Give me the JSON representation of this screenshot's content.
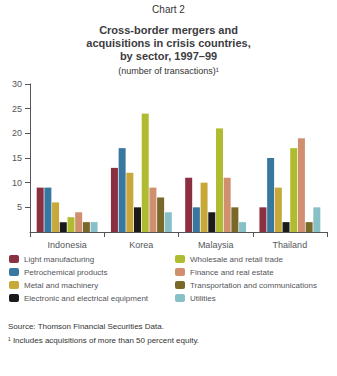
{
  "chart_data": {
    "type": "bar",
    "title": "Cross-border mergers and\nacquisitions in crisis countries,\nby sector, 1997–99",
    "subtitle": "(number of transactions)¹",
    "annotations": [
      "Chart 2",
      "Source: Thomson Financial Securities Data.",
      "¹ Includes acquisitions of more than 50 percent equity."
    ],
    "categories": [
      "Indonesia",
      "Korea",
      "Malaysia",
      "Thailand"
    ],
    "series": [
      {
        "name": "Light manufacturing",
        "color": "#8b3040",
        "values": [
          9,
          13,
          11,
          5
        ]
      },
      {
        "name": "Petrochemical products",
        "color": "#3878a0",
        "values": [
          9,
          17,
          5,
          15
        ]
      },
      {
        "name": "Metal and machinery",
        "color": "#c8a838",
        "values": [
          6,
          12,
          10,
          9
        ]
      },
      {
        "name": "Electronic and electrical equipment",
        "color": "#1a1a1a",
        "values": [
          2,
          5,
          4,
          2
        ]
      },
      {
        "name": "Wholesale and retail trade",
        "color": "#b0bc30",
        "values": [
          3,
          24,
          21,
          17
        ]
      },
      {
        "name": "Finance and real estate",
        "color": "#d09070",
        "values": [
          4,
          9,
          11,
          19
        ]
      },
      {
        "name": "Transportation and communications",
        "color": "#7a6828",
        "values": [
          2,
          7,
          5,
          2
        ]
      },
      {
        "name": "Utilities",
        "color": "#88c0c8",
        "values": [
          2,
          4,
          2,
          5
        ]
      }
    ],
    "ylim": [
      0,
      30
    ],
    "yticks": [
      5,
      10,
      15,
      20,
      25,
      30
    ],
    "grid": false,
    "legend": "bottom"
  }
}
